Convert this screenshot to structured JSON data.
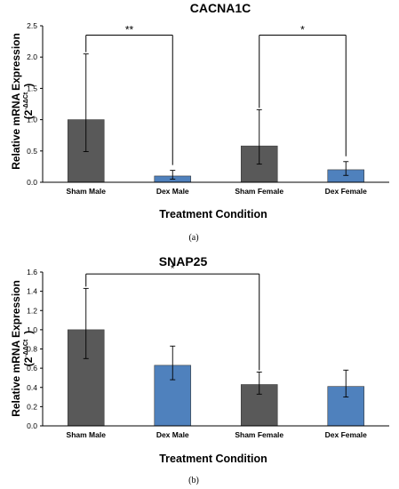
{
  "colors": {
    "sham": "#595959",
    "dex": "#4f81bd",
    "axis": "#000000"
  },
  "chart_data": [
    {
      "type": "bar",
      "title": "CACNA1C",
      "xlabel": "Treatment Condition",
      "ylabel": "Relative mRNA Expression",
      "ylabel_units": "(2",
      "ylabel_units_sup": "-ΔΔCt",
      "ylabel_units_close": ")",
      "ylim": [
        0,
        2.5
      ],
      "yticks": [
        "0.0",
        "0.5",
        "1.0",
        "1.5",
        "2.0",
        "2.5"
      ],
      "ytick_values": [
        0,
        0.5,
        1.0,
        1.5,
        2.0,
        2.5
      ],
      "categories": [
        "Sham Male",
        "Dex  Male",
        "Sham Female",
        "Dex Female"
      ],
      "values": [
        1.0,
        0.1,
        0.58,
        0.2
      ],
      "err_high": [
        2.05,
        0.19,
        1.16,
        0.33
      ],
      "err_low": [
        0.49,
        0.05,
        0.29,
        0.11
      ],
      "bar_colors": [
        "sham",
        "dex",
        "sham",
        "dex"
      ],
      "significance": [
        {
          "from": 0,
          "to": 1,
          "label": "**",
          "y": 2.35
        },
        {
          "from": 2,
          "to": 3,
          "label": "*",
          "y": 2.35
        }
      ],
      "caption": "(a)",
      "grid": false
    },
    {
      "type": "bar",
      "title": "SNAP25",
      "xlabel": "Treatment Condition",
      "ylabel": "Relative mRNA Expression",
      "ylabel_units": "(2",
      "ylabel_units_sup": "-ΔΔCt",
      "ylabel_units_close": ")",
      "ylim": [
        0,
        1.6
      ],
      "yticks": [
        "0.0",
        "0.2",
        "0.4",
        "0.6",
        "0.8",
        "1.0",
        "1.2",
        "1.4",
        "1.6"
      ],
      "ytick_values": [
        0,
        0.2,
        0.4,
        0.6,
        0.8,
        1.0,
        1.2,
        1.4,
        1.6
      ],
      "categories": [
        "Sham Male",
        "Dex Male",
        "Sham Female",
        "Dex Female"
      ],
      "values": [
        1.0,
        0.63,
        0.43,
        0.41
      ],
      "err_high": [
        1.43,
        0.83,
        0.56,
        0.58
      ],
      "err_low": [
        0.7,
        0.48,
        0.33,
        0.3
      ],
      "bar_colors": [
        "sham",
        "dex",
        "sham",
        "dex"
      ],
      "significance": [
        {
          "from": 0,
          "to": 2,
          "label": "*",
          "y": 1.58
        }
      ],
      "caption": "(b)",
      "grid": false
    }
  ]
}
